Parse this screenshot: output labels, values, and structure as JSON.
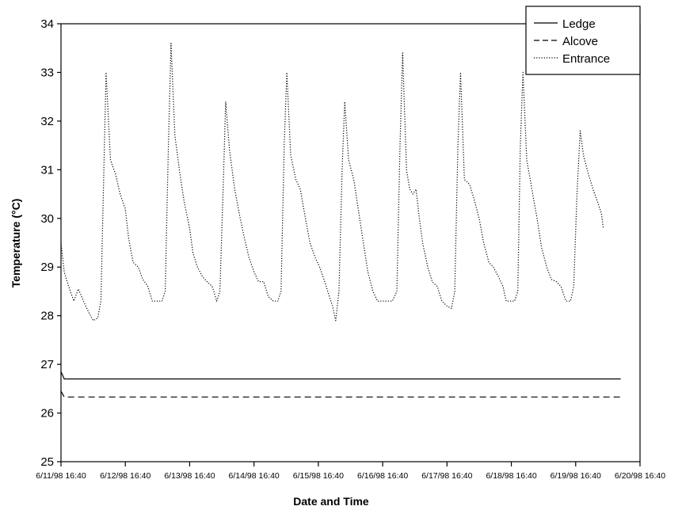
{
  "chart_data": {
    "type": "line",
    "title": "",
    "xlabel": "Date and Time",
    "ylabel": "Temperature (°C)",
    "ylim": [
      25,
      34
    ],
    "yticks": [
      25,
      26,
      27,
      28,
      29,
      30,
      31,
      32,
      33,
      34
    ],
    "x_tick_labels": [
      "6/11/98 16:40",
      "6/12/98 16:40",
      "6/13/98 16:40",
      "6/14/98 16:40",
      "6/15/98 16:40",
      "6/16/98 16:40",
      "6/17/98 16:40",
      "6/18/98 16:40",
      "6/19/98 16:40",
      "6/20/98 16:40"
    ],
    "x_unit": "days",
    "xlim": [
      0,
      9
    ],
    "grid": false,
    "legend_position": "top-right",
    "series": [
      {
        "name": "Ledge",
        "style": "solid",
        "color": "#000000",
        "points": [
          [
            0,
            26.85
          ],
          [
            0.05,
            26.7
          ],
          [
            8.7,
            26.7
          ]
        ]
      },
      {
        "name": "Alcove",
        "style": "dashed",
        "color": "#000000",
        "points": [
          [
            0,
            26.45
          ],
          [
            0.05,
            26.33
          ],
          [
            8.7,
            26.33
          ]
        ]
      },
      {
        "name": "Entrance",
        "style": "dotted",
        "color": "#000000",
        "points": [
          [
            0.0,
            29.5
          ],
          [
            0.05,
            28.9
          ],
          [
            0.12,
            28.6
          ],
          [
            0.2,
            28.3
          ],
          [
            0.27,
            28.55
          ],
          [
            0.35,
            28.3
          ],
          [
            0.42,
            28.1
          ],
          [
            0.5,
            27.9
          ],
          [
            0.57,
            27.95
          ],
          [
            0.62,
            28.3
          ],
          [
            0.67,
            31.2
          ],
          [
            0.7,
            33.0
          ],
          [
            0.77,
            31.2
          ],
          [
            0.85,
            30.9
          ],
          [
            0.92,
            30.5
          ],
          [
            1.0,
            30.2
          ],
          [
            1.05,
            29.6
          ],
          [
            1.12,
            29.1
          ],
          [
            1.2,
            29.0
          ],
          [
            1.27,
            28.75
          ],
          [
            1.35,
            28.6
          ],
          [
            1.42,
            28.3
          ],
          [
            1.5,
            28.3
          ],
          [
            1.57,
            28.3
          ],
          [
            1.62,
            28.5
          ],
          [
            1.67,
            31.5
          ],
          [
            1.71,
            33.6
          ],
          [
            1.77,
            31.7
          ],
          [
            1.85,
            30.9
          ],
          [
            1.92,
            30.3
          ],
          [
            2.0,
            29.8
          ],
          [
            2.05,
            29.3
          ],
          [
            2.12,
            29.0
          ],
          [
            2.2,
            28.8
          ],
          [
            2.27,
            28.7
          ],
          [
            2.35,
            28.6
          ],
          [
            2.42,
            28.3
          ],
          [
            2.47,
            28.5
          ],
          [
            2.52,
            30.6
          ],
          [
            2.56,
            32.4
          ],
          [
            2.62,
            31.4
          ],
          [
            2.7,
            30.6
          ],
          [
            2.77,
            30.1
          ],
          [
            2.85,
            29.6
          ],
          [
            2.92,
            29.2
          ],
          [
            3.0,
            28.9
          ],
          [
            3.07,
            28.7
          ],
          [
            3.15,
            28.7
          ],
          [
            3.22,
            28.4
          ],
          [
            3.3,
            28.3
          ],
          [
            3.37,
            28.3
          ],
          [
            3.42,
            28.5
          ],
          [
            3.47,
            31.5
          ],
          [
            3.51,
            33.0
          ],
          [
            3.57,
            31.3
          ],
          [
            3.65,
            30.8
          ],
          [
            3.72,
            30.6
          ],
          [
            3.8,
            30.0
          ],
          [
            3.87,
            29.5
          ],
          [
            3.95,
            29.2
          ],
          [
            4.02,
            29.0
          ],
          [
            4.1,
            28.7
          ],
          [
            4.17,
            28.4
          ],
          [
            4.22,
            28.2
          ],
          [
            4.27,
            27.9
          ],
          [
            4.32,
            28.5
          ],
          [
            4.37,
            31.0
          ],
          [
            4.41,
            32.4
          ],
          [
            4.47,
            31.2
          ],
          [
            4.55,
            30.8
          ],
          [
            4.62,
            30.2
          ],
          [
            4.7,
            29.5
          ],
          [
            4.77,
            28.9
          ],
          [
            4.85,
            28.5
          ],
          [
            4.92,
            28.3
          ],
          [
            5.0,
            28.3
          ],
          [
            5.07,
            28.3
          ],
          [
            5.15,
            28.3
          ],
          [
            5.22,
            28.5
          ],
          [
            5.27,
            31.5
          ],
          [
            5.31,
            33.4
          ],
          [
            5.37,
            31.0
          ],
          [
            5.42,
            30.6
          ],
          [
            5.47,
            30.5
          ],
          [
            5.52,
            30.6
          ],
          [
            5.57,
            30.0
          ],
          [
            5.62,
            29.5
          ],
          [
            5.7,
            29.0
          ],
          [
            5.77,
            28.7
          ],
          [
            5.85,
            28.6
          ],
          [
            5.92,
            28.3
          ],
          [
            6.0,
            28.2
          ],
          [
            6.07,
            28.15
          ],
          [
            6.12,
            28.5
          ],
          [
            6.17,
            31.5
          ],
          [
            6.21,
            33.0
          ],
          [
            6.27,
            30.8
          ],
          [
            6.35,
            30.7
          ],
          [
            6.42,
            30.4
          ],
          [
            6.5,
            30.0
          ],
          [
            6.57,
            29.5
          ],
          [
            6.65,
            29.1
          ],
          [
            6.72,
            29.0
          ],
          [
            6.8,
            28.8
          ],
          [
            6.87,
            28.6
          ],
          [
            6.92,
            28.3
          ],
          [
            7.0,
            28.3
          ],
          [
            7.05,
            28.3
          ],
          [
            7.1,
            28.5
          ],
          [
            7.14,
            31.5
          ],
          [
            7.18,
            33.0
          ],
          [
            7.24,
            31.2
          ],
          [
            7.32,
            30.6
          ],
          [
            7.4,
            30.0
          ],
          [
            7.47,
            29.4
          ],
          [
            7.55,
            29.0
          ],
          [
            7.62,
            28.75
          ],
          [
            7.7,
            28.7
          ],
          [
            7.77,
            28.6
          ],
          [
            7.85,
            28.3
          ],
          [
            7.92,
            28.3
          ],
          [
            7.97,
            28.6
          ],
          [
            8.02,
            30.5
          ],
          [
            8.07,
            31.8
          ],
          [
            8.12,
            31.3
          ],
          [
            8.2,
            30.9
          ],
          [
            8.27,
            30.6
          ],
          [
            8.35,
            30.3
          ],
          [
            8.4,
            30.1
          ],
          [
            8.43,
            29.8
          ]
        ]
      }
    ]
  }
}
